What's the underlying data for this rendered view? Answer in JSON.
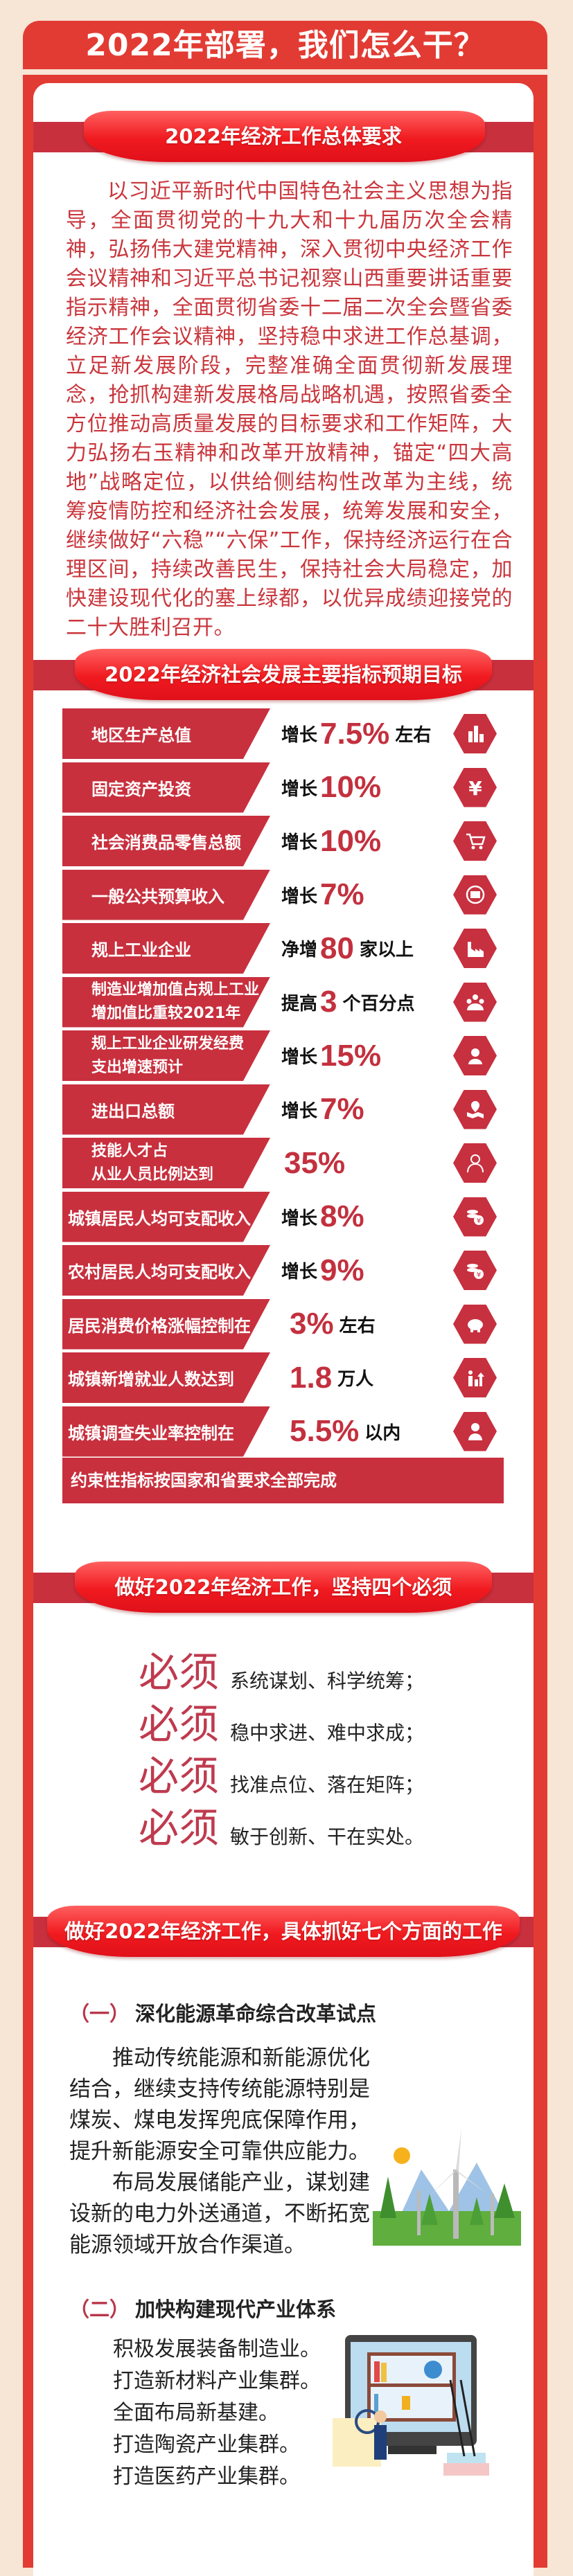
{
  "header": {
    "title": "2022年部署，我们怎么干？"
  },
  "section1": {
    "ribbon": "2022年经济工作总体要求",
    "text": "以习近平新时代中国特色社会主义思想为指导，全面贯彻党的十九大和十九届历次全会精神，弘扬伟大建党精神，深入贯彻中央经济工作会议精神和习近平总书记视察山西重要讲话重要指示精神，全面贯彻省委十二届二次全会暨省委经济工作会议精神，坚持稳中求进工作总基调，立足新发展阶段，完整准确全面贯彻新发展理念，抢抓构建新发展格局战略机遇，按照省委全方位推动高质量发展的目标要求和工作矩阵，大力弘扬右玉精神和改革开放精神，锚定“四大高地”战略定位，以供给侧结构性改革为主线，统筹疫情防控和经济社会发展，统筹发展和安全，继续做好“六稳”“六保”工作，保持经济运行在合理区间，持续改善民生，保持社会大局稳定，加快建设现代化的塞上绿都，以优异成绩迎接党的二十大胜利召开。"
  },
  "section2": {
    "ribbon": "2022年经济社会发展主要指标预期目标",
    "indicators": [
      {
        "label": [
          "地区生产总值"
        ],
        "prefix": "增长",
        "value": "7.5%",
        "suffix": "左右",
        "icon": "building-chart-icon"
      },
      {
        "label": [
          "固定资产投资"
        ],
        "prefix": "增长",
        "value": "10%",
        "suffix": "",
        "icon": "yen-icon"
      },
      {
        "label": [
          "社会消费品零售总额"
        ],
        "prefix": "增长",
        "value": "10%",
        "suffix": "",
        "icon": "shopping-cart-icon"
      },
      {
        "label": [
          "一般公共预算收入"
        ],
        "prefix": "增长",
        "value": "7%",
        "suffix": "",
        "icon": "cash-icon"
      },
      {
        "label": [
          "规上工业企业"
        ],
        "prefix": "净增",
        "value": "80",
        "suffix": "家以上",
        "icon": "factory-icon"
      },
      {
        "label": [
          "制造业增加值占规上工业",
          "增加值比重较2021年"
        ],
        "prefix": "提高",
        "value": "3",
        "suffix": "个百分点",
        "icon": "team-icon"
      },
      {
        "label": [
          "规上工业企业研发经费",
          "支出增速预计"
        ],
        "prefix": "增长",
        "value": "15%",
        "suffix": "",
        "icon": "researcher-icon"
      },
      {
        "label": [
          "进出口总额"
        ],
        "prefix": "增长",
        "value": "7%",
        "suffix": "",
        "icon": "map-pin-icon"
      },
      {
        "label": [
          "技能人才占",
          "从业人员比例达到"
        ],
        "prefix": "",
        "value": "35%",
        "suffix": "",
        "icon": "person-outline-icon"
      },
      {
        "label": [
          "城镇居民人均可支配收入"
        ],
        "prefix": "增长",
        "value": "8%",
        "suffix": "",
        "icon": "coins-yen-icon"
      },
      {
        "label": [
          "农村居民人均可支配收入"
        ],
        "prefix": "增长",
        "value": "9%",
        "suffix": "",
        "icon": "coins-yen-icon"
      },
      {
        "label": [
          "居民消费价格涨幅控制在"
        ],
        "prefix": "",
        "value": "3%",
        "suffix": "左右",
        "icon": "piggy-bank-icon"
      },
      {
        "label": [
          "城镇新增就业人数达到"
        ],
        "prefix": "",
        "value": "1.8",
        "suffix": "万人",
        "icon": "people-growth-icon"
      },
      {
        "label": [
          "城镇调查失业率控制在"
        ],
        "prefix": "",
        "value": "5.5%",
        "suffix": "以内",
        "icon": "worker-icon"
      }
    ],
    "constraint": "约束性指标按国家和省要求全部完成"
  },
  "section3": {
    "ribbon": "做好2022年经济工作，坚持四个必须",
    "musts": [
      {
        "mark": "必须",
        "text": "系统谋划、科学统筹；"
      },
      {
        "mark": "必须",
        "text": "稳中求进、难中求成；"
      },
      {
        "mark": "必须",
        "text": "找准点位、落在矩阵；"
      },
      {
        "mark": "必须",
        "text": "敏于创新、干在实处。"
      }
    ]
  },
  "section4": {
    "ribbon": "做好2022年经济工作，具体抓好七个方面的工作",
    "item1": {
      "num": "（一）",
      "title": "深化能源革命综合改革试点",
      "paragraphs": [
        "推动传统能源和新能源优化结合，继续支持传统能源特别是煤炭、煤电发挥兜底保障作用，提升新能源安全可靠供应能力。",
        "布局发展储能产业，谋划建设新的电力外送通道，不断拓宽能源领域开放合作渠道。"
      ]
    },
    "item2": {
      "num": "（二）",
      "title": "加快构建现代产业体系",
      "lines": [
        "积极发展装备制造业。",
        "打造新材料产业集群。",
        "全面布局新基建。",
        "打造陶瓷产业集群。",
        "打造医药产业集群。"
      ]
    }
  },
  "colors": {
    "red": "#e23b33",
    "label_red": "#c8303e",
    "value_red": "#c3303e",
    "background": "#f7e5d5"
  }
}
